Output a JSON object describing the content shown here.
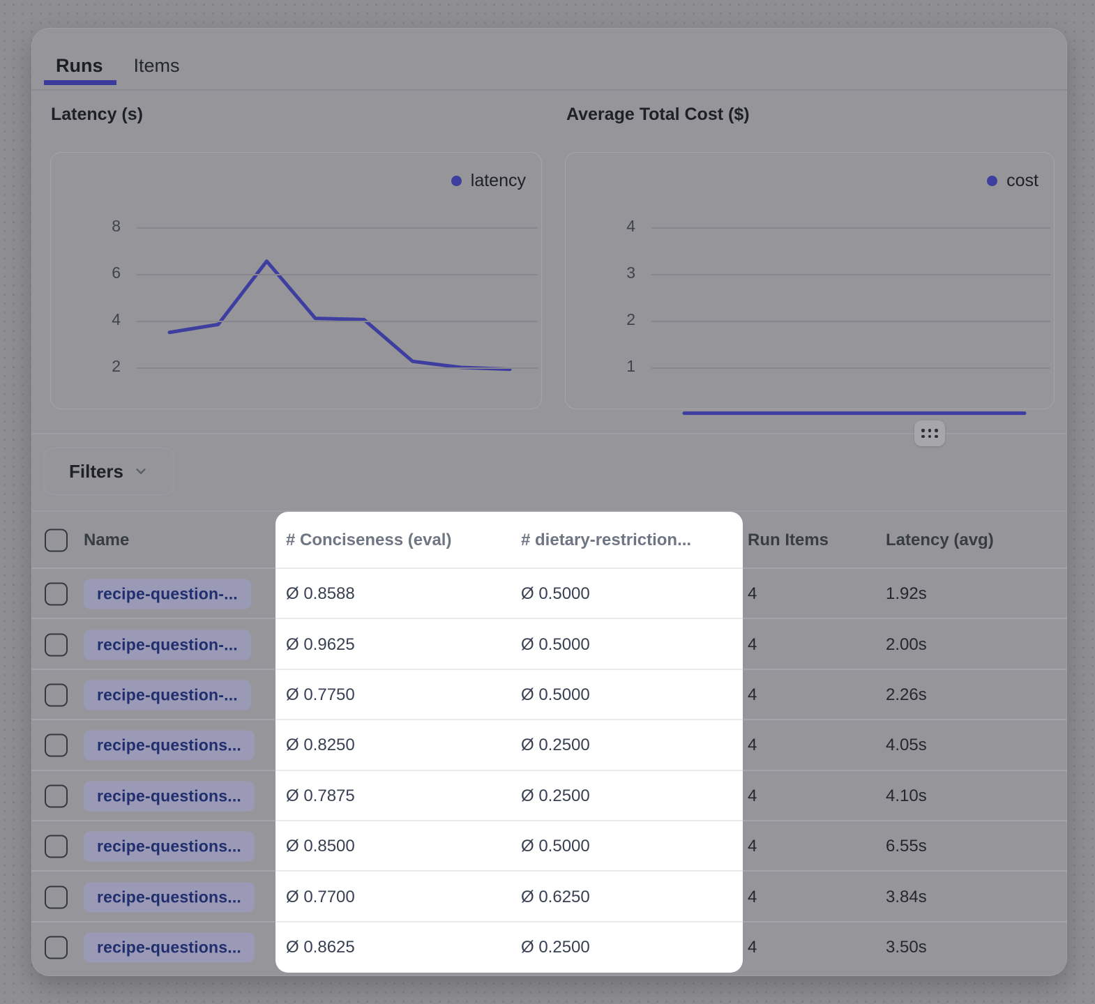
{
  "tabs": {
    "runs": "Runs",
    "items": "Items"
  },
  "filters": {
    "label": "Filters"
  },
  "chart_data": [
    {
      "type": "line",
      "title": "Latency (s)",
      "legend": "latency",
      "color": "#3e3ea0",
      "yticks": [
        8,
        6,
        4,
        2
      ],
      "values": [
        3.5,
        3.84,
        6.55,
        4.1,
        4.05,
        2.26,
        2.0,
        1.92
      ],
      "grid": true,
      "legend_position": "top-right"
    },
    {
      "type": "line",
      "title": "Average Total Cost ($)",
      "legend": "cost",
      "color": "#3e3ea0",
      "yticks": [
        4,
        3,
        2,
        1
      ],
      "values": [
        0.02,
        0.02,
        0.02,
        0.02,
        0.02,
        0.02,
        0.02,
        0.02
      ],
      "grid": true,
      "legend_position": "top-right"
    }
  ],
  "table": {
    "headers": {
      "name": "Name",
      "conciseness": "# Conciseness (eval)",
      "dietary": "# dietary-restriction...",
      "run_items": "Run Items",
      "latency": "Latency (avg)"
    },
    "rows": [
      {
        "name": "recipe-question-...",
        "conciseness": "Ø 0.8588",
        "dietary": "Ø 0.5000",
        "run_items": "4",
        "latency": "1.92s"
      },
      {
        "name": "recipe-question-...",
        "conciseness": "Ø 0.9625",
        "dietary": "Ø 0.5000",
        "run_items": "4",
        "latency": "2.00s"
      },
      {
        "name": "recipe-question-...",
        "conciseness": "Ø 0.7750",
        "dietary": "Ø 0.5000",
        "run_items": "4",
        "latency": "2.26s"
      },
      {
        "name": "recipe-questions...",
        "conciseness": "Ø 0.8250",
        "dietary": "Ø 0.2500",
        "run_items": "4",
        "latency": "4.05s"
      },
      {
        "name": "recipe-questions...",
        "conciseness": "Ø 0.7875",
        "dietary": "Ø 0.2500",
        "run_items": "4",
        "latency": "4.10s"
      },
      {
        "name": "recipe-questions...",
        "conciseness": "Ø 0.8500",
        "dietary": "Ø 0.5000",
        "run_items": "4",
        "latency": "6.55s"
      },
      {
        "name": "recipe-questions...",
        "conciseness": "Ø 0.7700",
        "dietary": "Ø 0.6250",
        "run_items": "4",
        "latency": "3.84s"
      },
      {
        "name": "recipe-questions...",
        "conciseness": "Ø 0.8625",
        "dietary": "Ø 0.2500",
        "run_items": "4",
        "latency": "3.50s"
      }
    ]
  }
}
